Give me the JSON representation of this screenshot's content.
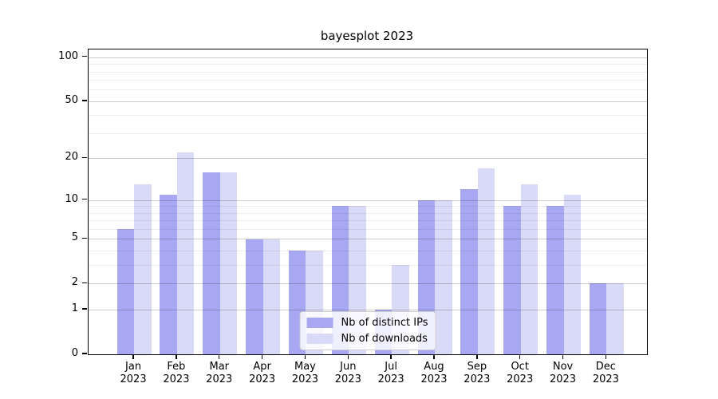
{
  "title": "bayesplot 2023",
  "colors": {
    "series_distinct_ips": "#a8a8f2",
    "series_downloads": "#d9d9f8",
    "spine": "#000000",
    "grid_major": "rgba(0,0,0,0.20)",
    "grid_minor": "rgba(0,0,0,0.07)",
    "legend_border": "#cccccc",
    "background": "#ffffff"
  },
  "legend": {
    "position": "lower center",
    "items": [
      {
        "label": "Nb of distinct IPs",
        "color": "#a8a8f2"
      },
      {
        "label": "Nb of downloads",
        "color": "#d9d9f8"
      }
    ]
  },
  "chart_data": {
    "type": "bar",
    "title": "bayesplot 2023",
    "xlabel": "",
    "ylabel": "",
    "scale": "log1p (symlog-like, 0 at baseline)",
    "categories": [
      "Jan 2023",
      "Feb 2023",
      "Mar 2023",
      "Apr 2023",
      "May 2023",
      "Jun 2023",
      "Jul 2023",
      "Aug 2023",
      "Sep 2023",
      "Oct 2023",
      "Nov 2023",
      "Dec 2023"
    ],
    "series": [
      {
        "name": "Nb of distinct IPs",
        "color": "#a8a8f2",
        "values": [
          6,
          11,
          16,
          5,
          4,
          9,
          1,
          10,
          12,
          9,
          9,
          2
        ]
      },
      {
        "name": "Nb of downloads",
        "color": "#d9d9f8",
        "values": [
          13,
          22,
          16,
          5,
          4,
          9,
          3,
          10,
          17,
          13,
          11,
          2
        ]
      }
    ],
    "ylim": [
      0,
      113
    ],
    "yticks": [
      0,
      1,
      2,
      5,
      10,
      20,
      50,
      100
    ],
    "grid_major_values": [
      1,
      2,
      5,
      10,
      20,
      50,
      100
    ],
    "grid_minor_values": [
      3,
      4,
      6,
      7,
      8,
      9,
      30,
      40,
      60,
      70,
      80,
      90
    ],
    "grid": "horizontal major+minor, drawn above bars",
    "legend_position": "lower center"
  }
}
